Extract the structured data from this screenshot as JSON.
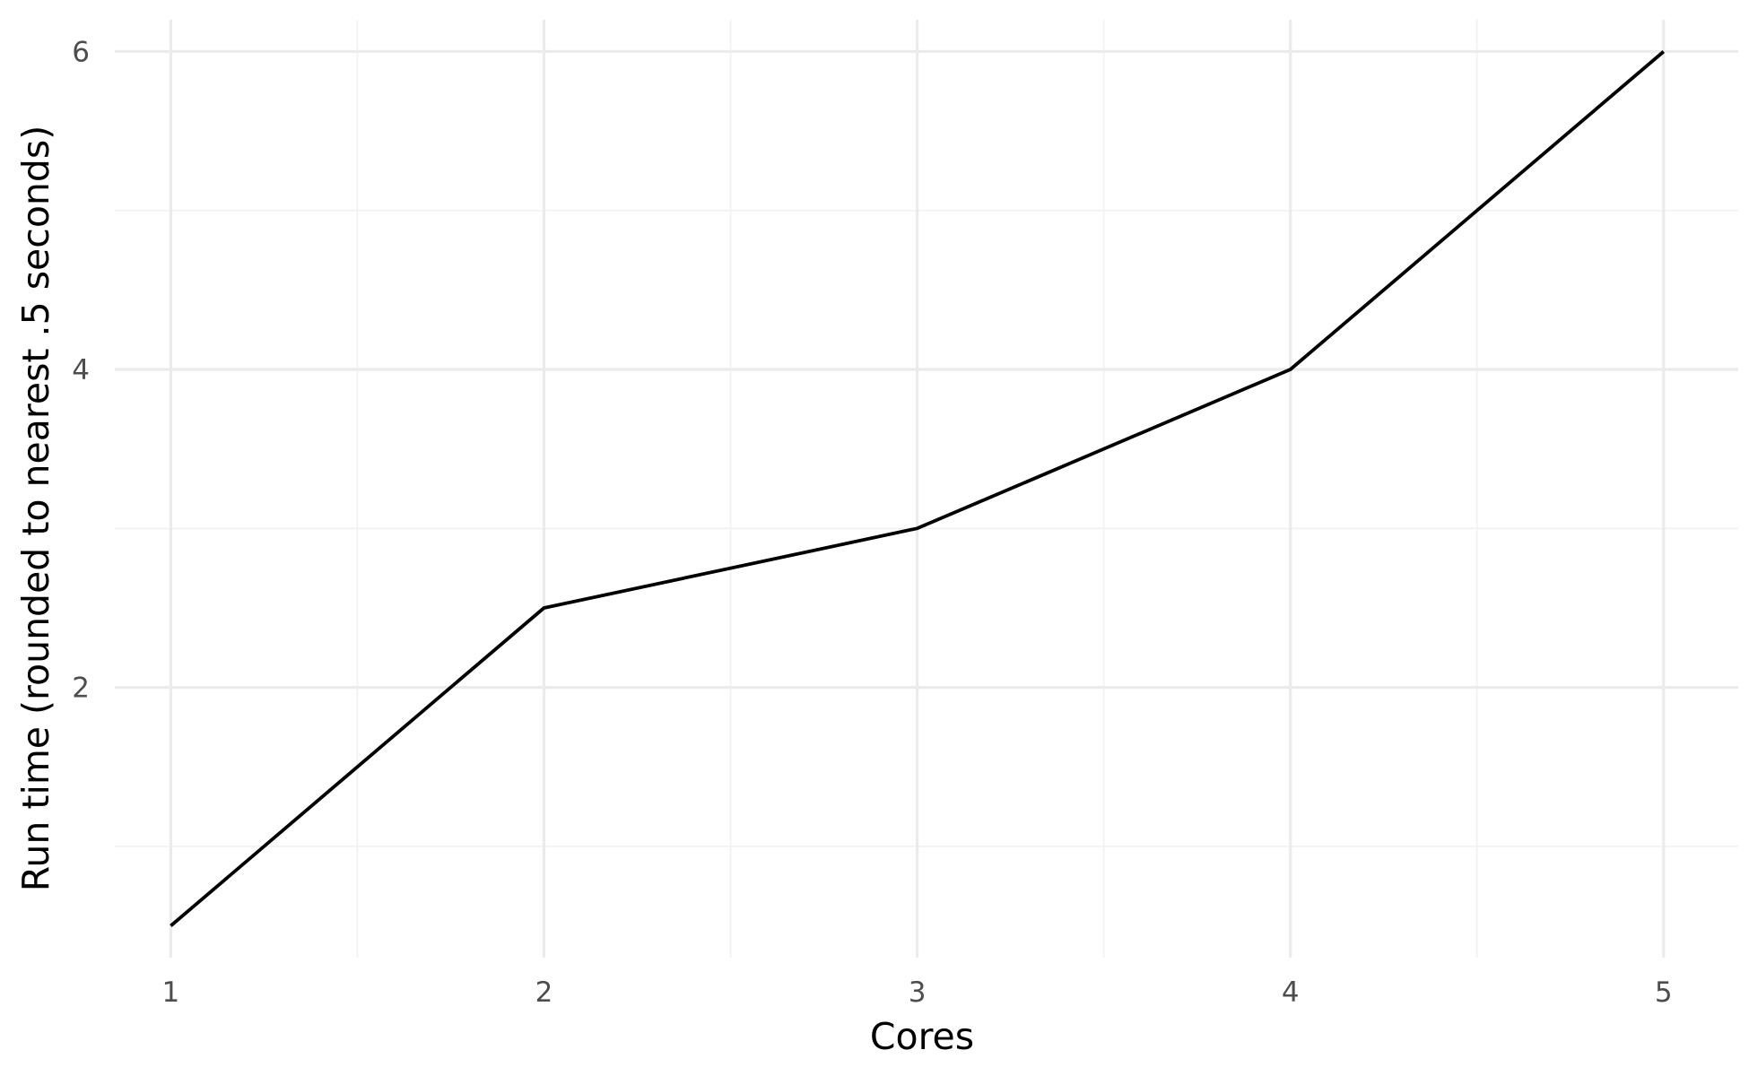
{
  "chart_data": {
    "type": "line",
    "title": "",
    "xlabel": "Cores",
    "ylabel": "Run time (rounded to nearest .5 seconds)",
    "x": [
      1,
      2,
      3,
      4,
      5
    ],
    "series": [
      {
        "values": [
          0.5,
          2.5,
          3,
          4,
          6
        ]
      }
    ],
    "xlim": [
      0.85,
      5.2
    ],
    "ylim": [
      0.3,
      6.2
    ],
    "x_ticks": [
      1,
      2,
      3,
      4,
      5
    ],
    "x_tick_labels": [
      "1",
      "2",
      "3",
      "4",
      "5"
    ],
    "y_ticks": [
      2,
      4,
      6
    ],
    "y_tick_labels": [
      "2",
      "4",
      "6"
    ],
    "x_minor_ticks": [
      1.5,
      2.5,
      3.5,
      4.5
    ],
    "y_minor_ticks": [
      1,
      3,
      5
    ],
    "grid": true,
    "legend": "none",
    "colors": {
      "line": "#000000",
      "grid_major": "#ebebeb",
      "grid_minor": "#f2f2f2",
      "tick_text": "#4d4d4d"
    }
  }
}
